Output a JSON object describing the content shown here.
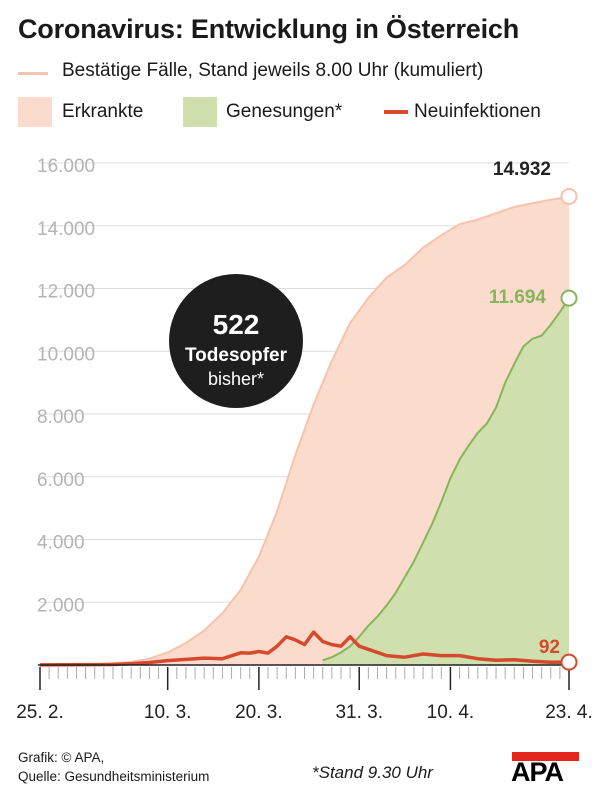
{
  "title": "Coronavirus: Entwicklung in Österreich",
  "subtitle": "Bestätige Fälle, Stand jeweils 8.00 Uhr (kumuliert)",
  "legend": {
    "erkrankte": "Erkrankte",
    "genesungen": "Genesungen*",
    "neuinfektionen": "Neuinfektionen"
  },
  "badge": {
    "number": "522",
    "line1": "Todesopfer",
    "line2": "bisher*"
  },
  "labels": {
    "erkrankte_last": "14.932",
    "genesungen_last": "11.694",
    "neuinfektionen_last": "92"
  },
  "footer": {
    "line1": "Grafik: © APA,",
    "line2": "Quelle: Gesundheitsministerium",
    "note": "*Stand 9.30 Uhr",
    "logo": "APA"
  },
  "colors": {
    "erkrankte_fill": "#fbdbcc",
    "erkrankte_line": "#f6c3ad",
    "genesungen_fill": "#cfdfae",
    "genesungen_line": "#86b55c",
    "neuinfektionen": "#d54a2d",
    "grid": "#dddddd",
    "tick_label": "#b4b4b4"
  },
  "chart_data": {
    "type": "area",
    "x_start": "25.2.",
    "x_tick_labels": [
      "25. 2.",
      "10. 3.",
      "20. 3.",
      "31. 3.",
      "10. 4.",
      "23. 4."
    ],
    "x_tick_days": [
      0,
      14,
      24,
      35,
      45,
      58
    ],
    "ylim": [
      0,
      16000
    ],
    "yticks": [
      2000,
      4000,
      6000,
      8000,
      10000,
      12000,
      14000,
      16000
    ],
    "ytick_labels": [
      "2.000",
      "4.000",
      "6.000",
      "8.000",
      "10.000",
      "12.000",
      "14.000",
      "16.000"
    ],
    "grid": true,
    "series": [
      {
        "name": "Erkrankte",
        "kind": "area",
        "days": [
          0,
          5,
          10,
          12,
          14,
          16,
          18,
          20,
          22,
          24,
          26,
          28,
          30,
          32,
          34,
          36,
          38,
          40,
          42,
          44,
          46,
          48,
          50,
          52,
          54,
          56,
          58
        ],
        "values": [
          2,
          12,
          100,
          200,
          400,
          700,
          1100,
          1650,
          2400,
          3450,
          4900,
          6700,
          8300,
          9700,
          10900,
          11700,
          12350,
          12750,
          13300,
          13700,
          14050,
          14200,
          14400,
          14600,
          14720,
          14830,
          14932
        ]
      },
      {
        "name": "Genesungen*",
        "kind": "area",
        "days": [
          31,
          32,
          33,
          34,
          35,
          36,
          37,
          38,
          39,
          40,
          41,
          42,
          43,
          44,
          45,
          46,
          47,
          48,
          49,
          50,
          51,
          52,
          53,
          54,
          55,
          56,
          57,
          58
        ],
        "values": [
          150,
          250,
          400,
          600,
          900,
          1250,
          1550,
          1900,
          2300,
          2800,
          3300,
          3900,
          4500,
          5200,
          5950,
          6550,
          7000,
          7400,
          7700,
          8200,
          9000,
          9600,
          10150,
          10400,
          10500,
          10850,
          11250,
          11694
        ]
      },
      {
        "name": "Neuinfektionen",
        "kind": "line",
        "days": [
          0,
          8,
          10,
          12,
          14,
          16,
          18,
          20,
          22,
          23,
          24,
          25,
          26,
          27,
          28,
          29,
          30,
          31,
          32,
          33,
          34,
          35,
          36,
          38,
          40,
          42,
          44,
          46,
          48,
          50,
          52,
          54,
          56,
          58
        ],
        "values": [
          2,
          15,
          40,
          80,
          140,
          180,
          220,
          200,
          390,
          380,
          430,
          380,
          600,
          900,
          800,
          650,
          1050,
          750,
          650,
          600,
          900,
          600,
          500,
          300,
          250,
          350,
          300,
          300,
          200,
          150,
          170,
          120,
          90,
          92
        ]
      }
    ]
  }
}
